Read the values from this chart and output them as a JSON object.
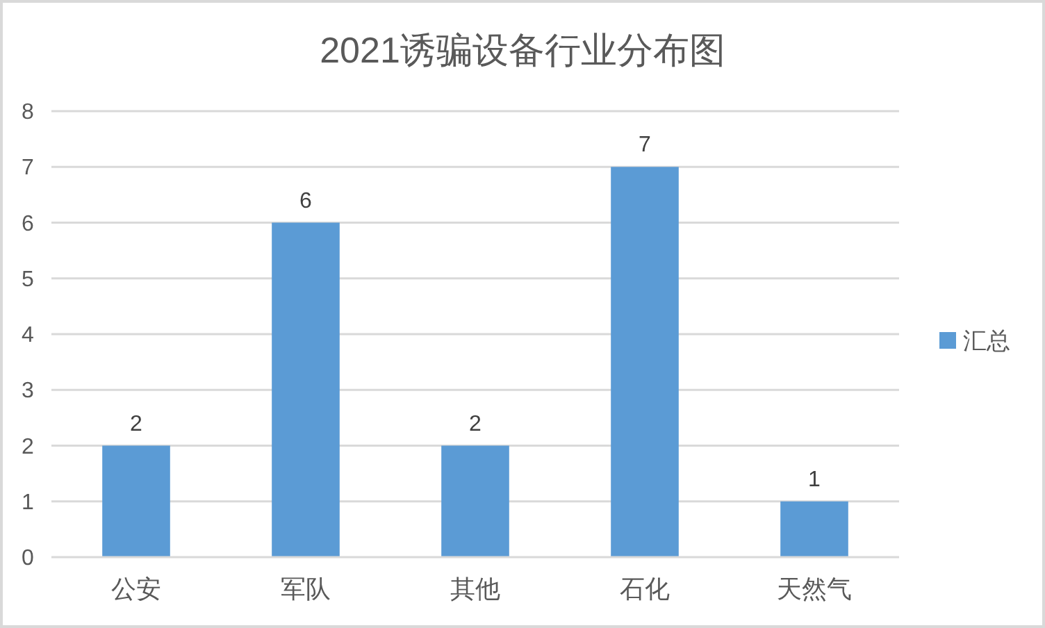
{
  "chart_data": {
    "type": "bar",
    "title": "2021诱骗设备行业分布图",
    "categories": [
      "公安",
      "军队",
      "其他",
      "石化",
      "天然气"
    ],
    "series": [
      {
        "name": "汇总",
        "color": "#5b9bd5",
        "values": [
          2,
          6,
          2,
          7,
          1
        ]
      }
    ],
    "ylim": [
      0,
      8
    ],
    "yticks": [
      0,
      1,
      2,
      3,
      4,
      5,
      6,
      7,
      8
    ],
    "grid": "y",
    "legend": "right",
    "data_labels": true
  }
}
